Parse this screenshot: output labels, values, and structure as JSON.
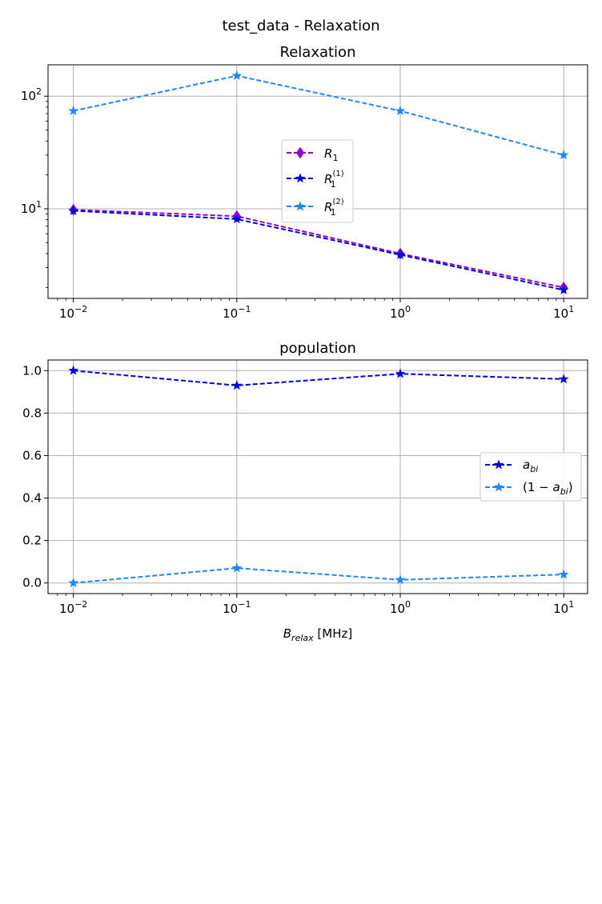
{
  "figure": {
    "suptitle": "test_data - Relaxation"
  },
  "chart_data": [
    {
      "type": "line",
      "title": "Relaxation",
      "xlabel": "",
      "ylabel": "",
      "xscale": "log",
      "yscale": "log",
      "xlim": [
        0.007,
        14
      ],
      "ylim": [
        1.6,
        190
      ],
      "grid": true,
      "legend_position": "center",
      "x_ticks": [
        {
          "value": 0.01,
          "base": "10",
          "exp": "−2"
        },
        {
          "value": 0.1,
          "base": "10",
          "exp": "−1"
        },
        {
          "value": 1,
          "base": "10",
          "exp": "0"
        },
        {
          "value": 10,
          "base": "10",
          "exp": "1"
        }
      ],
      "y_ticks": [
        {
          "value": 10,
          "base": "10",
          "exp": "1"
        },
        {
          "value": 100,
          "base": "10",
          "exp": "2"
        }
      ],
      "x": [
        0.01,
        0.1,
        1,
        10
      ],
      "series": [
        {
          "name": "R1",
          "label": {
            "main": "R",
            "sub": "1",
            "sup": ""
          },
          "color": "#9400D3",
          "marker": "diamond",
          "values": [
            9.8,
            8.6,
            4.0,
            2.0
          ]
        },
        {
          "name": "R1(1)",
          "label": {
            "main": "R",
            "sub": "1",
            "sup": "(1)"
          },
          "color": "#0000E6",
          "marker": "star",
          "values": [
            9.6,
            8.1,
            3.9,
            1.9
          ]
        },
        {
          "name": "R1(2)",
          "label": {
            "main": "R",
            "sub": "1",
            "sup": "(2)"
          },
          "color": "#1E88FF",
          "marker": "star",
          "values": [
            74,
            152,
            74,
            30
          ]
        }
      ]
    },
    {
      "type": "line",
      "title": "population",
      "xlabel": "B_relax [MHz]",
      "xlabel_parts": {
        "main": "B",
        "sub": "relax",
        "rest": "  [MHz]"
      },
      "ylabel": "",
      "xscale": "log",
      "yscale": "linear",
      "xlim": [
        0.007,
        14
      ],
      "ylim": [
        -0.05,
        1.05
      ],
      "grid": true,
      "legend_position": "center-right",
      "x_ticks": [
        {
          "value": 0.01,
          "base": "10",
          "exp": "−2"
        },
        {
          "value": 0.1,
          "base": "10",
          "exp": "−1"
        },
        {
          "value": 1,
          "base": "10",
          "exp": "0"
        },
        {
          "value": 10,
          "base": "10",
          "exp": "1"
        }
      ],
      "y_ticks": [
        {
          "value": 0.0,
          "label": "0.0"
        },
        {
          "value": 0.2,
          "label": "0.2"
        },
        {
          "value": 0.4,
          "label": "0.4"
        },
        {
          "value": 0.6,
          "label": "0.6"
        },
        {
          "value": 0.8,
          "label": "0.8"
        },
        {
          "value": 1.0,
          "label": "1.0"
        }
      ],
      "x": [
        0.01,
        0.1,
        1,
        10
      ],
      "series": [
        {
          "name": "a_bi",
          "label": {
            "pre": "",
            "main": "a",
            "sub": "bi",
            "post": ""
          },
          "color": "#0000E6",
          "marker": "star",
          "values": [
            1.0,
            0.93,
            0.985,
            0.96
          ]
        },
        {
          "name": "(1 - a_bi)",
          "label": {
            "pre": "(1 − ",
            "main": "a",
            "sub": "bi",
            "post": ")"
          },
          "color": "#1E88FF",
          "marker": "star",
          "values": [
            0.0,
            0.07,
            0.015,
            0.04
          ]
        }
      ]
    }
  ]
}
